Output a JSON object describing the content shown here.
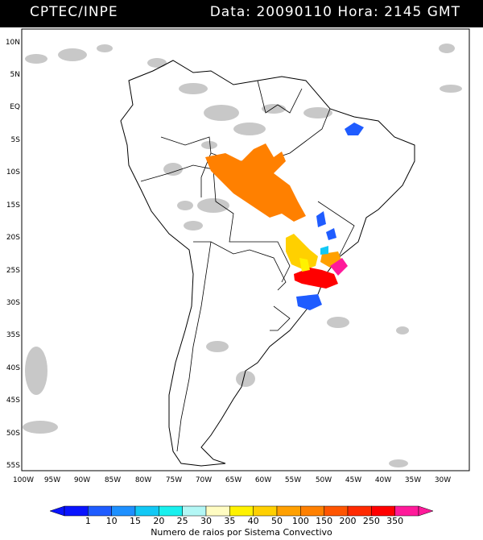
{
  "header": {
    "source": "CPTEC/INPE",
    "datetime": "Data: 20090110 Hora: 2145 GMT"
  },
  "axes": {
    "lat_labels": [
      "10N",
      "5N",
      "EQ",
      "5S",
      "10S",
      "15S",
      "20S",
      "25S",
      "30S",
      "35S",
      "40S",
      "45S",
      "50S",
      "55S"
    ],
    "lon_labels": [
      "100W",
      "95W",
      "90W",
      "85W",
      "80W",
      "75W",
      "70W",
      "65W",
      "60W",
      "55W",
      "50W",
      "45W",
      "40W",
      "35W",
      "30W"
    ]
  },
  "legend": {
    "title": "Numero de raios por Sistema Convectivo",
    "labels": [
      "1",
      "10",
      "15",
      "20",
      "25",
      "30",
      "35",
      "40",
      "50",
      "100",
      "150",
      "200",
      "250",
      "350"
    ],
    "colors": [
      "#0a14ff",
      "#1f5cff",
      "#1e90ff",
      "#12c8f5",
      "#19f0ee",
      "#b3f7f5",
      "#fffcc2",
      "#fff200",
      "#ffd000",
      "#ffa000",
      "#ff8000",
      "#ff5500",
      "#ff2a00",
      "#ff0000",
      "#ff1a9a"
    ]
  },
  "map_features": {
    "countries": "South America political boundaries",
    "cloud_color": "#c8c8c8",
    "storm_systems": [
      {
        "region": "Amazon / central Brazil",
        "class": "150-200",
        "color": "#ff8000"
      },
      {
        "region": "Parana / Sao Paulo",
        "class": "250-350",
        "color": "#ff0000"
      },
      {
        "region": "Sao Paulo coast",
        "class": ">350",
        "color": "#ff1a9a"
      },
      {
        "region": "Mato Grosso do Sul",
        "class": "40-100",
        "color": "#ffd000"
      },
      {
        "region": "Rio Grande do Sul",
        "class": "10-15",
        "color": "#1f5cff"
      },
      {
        "region": "Northeast Brazil",
        "class": "10-15",
        "color": "#1f5cff"
      }
    ]
  }
}
